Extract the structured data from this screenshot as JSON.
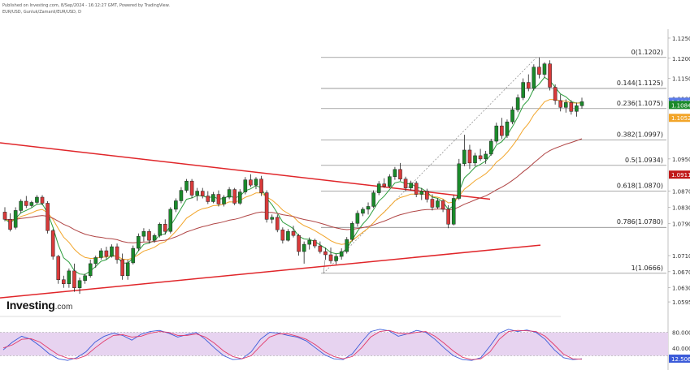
{
  "header": {
    "line1": "Published on Investing.com, 8/Sep/2024 - 16:12:27 GMT, Powered by TradingView.",
    "line2": "EUR/USD, Gunluk/Zamanli/EUR/USD, D"
  },
  "watermark": {
    "brand": "Investing",
    "domain": ".com"
  },
  "colors": {
    "bull": "#1a8a2a",
    "bear": "#d93a3a",
    "ema_fast": "#2e9e3e",
    "ema_mid": "#f2a52a",
    "ema_slow": "#b04545",
    "trend": "#e0262a",
    "stoch_k": "#3b5bd9",
    "stoch_d": "#e23a6a",
    "stoch_band": "#e7d3f0"
  },
  "chart_data": [
    {
      "type": "candlestick",
      "symbol": "EUR/USD",
      "y_ticks": [
        "1.1250",
        "1.1200",
        "1.1150",
        "1.1100",
        "1.0950",
        "1.0870",
        "1.0830",
        "1.0790",
        "1.0710",
        "1.0670",
        "1.0630",
        "1.0595"
      ],
      "ylim": [
        1.0575,
        1.126
      ],
      "price_labels": [
        {
          "text": "1.1092",
          "value": 1.1092,
          "color": "#5b7be8"
        },
        {
          "text": "1.1084",
          "value": 1.1084,
          "color": "#1a8a2a"
        },
        {
          "text": "1.1052",
          "value": 1.1052,
          "color": "#f2a52a"
        },
        {
          "text": "1.0911",
          "value": 1.0911,
          "color": "#c01818"
        }
      ],
      "fibonacci": [
        {
          "label": "0(1.1202)",
          "value": 1.1202
        },
        {
          "label": "0.144(1.1125)",
          "value": 1.1125
        },
        {
          "label": "0.236(1.1075)",
          "value": 1.1075
        },
        {
          "label": "0.382(1.0997)",
          "value": 1.0997
        },
        {
          "label": "0.5(1.0934)",
          "value": 1.0934
        },
        {
          "label": "0.618(1.0870)",
          "value": 1.087
        },
        {
          "label": "0.786(1.0780)",
          "value": 1.078
        },
        {
          "label": "1(1.0666)",
          "value": 1.0666
        }
      ],
      "candles": [
        [
          1.0818,
          1.083,
          1.0795,
          1.08
        ],
        [
          1.08,
          1.0815,
          1.077,
          1.0775
        ],
        [
          1.078,
          1.083,
          1.0775,
          1.0822
        ],
        [
          1.0822,
          1.085,
          1.0815,
          1.0845
        ],
        [
          1.0845,
          1.0858,
          1.0828,
          1.0834
        ],
        [
          1.0834,
          1.0846,
          1.083,
          1.0842
        ],
        [
          1.0842,
          1.086,
          1.0838,
          1.0855
        ],
        [
          1.0855,
          1.086,
          1.0835,
          1.084
        ],
        [
          1.084,
          1.0845,
          1.0765,
          1.0772
        ],
        [
          1.0772,
          1.0776,
          1.07,
          1.0708
        ],
        [
          1.0708,
          1.0712,
          1.064,
          1.065
        ],
        [
          1.065,
          1.066,
          1.063,
          1.064
        ],
        [
          1.064,
          1.0678,
          1.063,
          1.0672
        ],
        [
          1.0672,
          1.069,
          1.062,
          1.063
        ],
        [
          1.063,
          1.0655,
          1.0615,
          1.0648
        ],
        [
          1.0648,
          1.0665,
          1.064,
          1.066
        ],
        [
          1.066,
          1.07,
          1.0655,
          1.069
        ],
        [
          1.069,
          1.071,
          1.068,
          1.0705
        ],
        [
          1.0705,
          1.0728,
          1.07,
          1.0722
        ],
        [
          1.0722,
          1.0732,
          1.07,
          1.0708
        ],
        [
          1.0708,
          1.0738,
          1.0705,
          1.0732
        ],
        [
          1.0732,
          1.074,
          1.069,
          1.07
        ],
        [
          1.07,
          1.0715,
          1.065,
          1.066
        ],
        [
          1.066,
          1.07,
          1.065,
          1.0692
        ],
        [
          1.0692,
          1.0735,
          1.0688,
          1.0728
        ],
        [
          1.0728,
          1.0765,
          1.0722,
          1.0758
        ],
        [
          1.0758,
          1.0778,
          1.0745,
          1.077
        ],
        [
          1.077,
          1.0776,
          1.074,
          1.0748
        ],
        [
          1.0748,
          1.0765,
          1.0742,
          1.076
        ],
        [
          1.076,
          1.0792,
          1.0755,
          1.0788
        ],
        [
          1.0788,
          1.08,
          1.0762,
          1.077
        ],
        [
          1.077,
          1.083,
          1.0765,
          1.0825
        ],
        [
          1.0825,
          1.0852,
          1.0818,
          1.0846
        ],
        [
          1.0846,
          1.088,
          1.084,
          1.0872
        ],
        [
          1.0872,
          1.09,
          1.0866,
          1.0895
        ],
        [
          1.0895,
          1.09,
          1.0852,
          1.086
        ],
        [
          1.086,
          1.0878,
          1.0846,
          1.087
        ],
        [
          1.087,
          1.0878,
          1.0852,
          1.0858
        ],
        [
          1.0858,
          1.087,
          1.0838,
          1.0844
        ],
        [
          1.0844,
          1.0868,
          1.084,
          1.0862
        ],
        [
          1.0862,
          1.0872,
          1.0832,
          1.0838
        ],
        [
          1.0838,
          1.086,
          1.0832,
          1.0855
        ],
        [
          1.0855,
          1.088,
          1.085,
          1.0874
        ],
        [
          1.0874,
          1.0878,
          1.0835,
          1.084
        ],
        [
          1.084,
          1.0875,
          1.0836,
          1.0868
        ],
        [
          1.0868,
          1.0905,
          1.0862,
          1.0898
        ],
        [
          1.0898,
          1.0912,
          1.088,
          1.0885
        ],
        [
          1.0885,
          1.0905,
          1.0875,
          1.09
        ],
        [
          1.09,
          1.0908,
          1.0858,
          1.0866
        ],
        [
          1.0866,
          1.0872,
          1.0792,
          1.08
        ],
        [
          1.08,
          1.0812,
          1.079,
          1.0805
        ],
        [
          1.0805,
          1.0812,
          1.0768,
          1.0774
        ],
        [
          1.0774,
          1.078,
          1.074,
          1.0748
        ],
        [
          1.0748,
          1.0776,
          1.0745,
          1.077
        ],
        [
          1.077,
          1.0784,
          1.0755,
          1.076
        ],
        [
          1.076,
          1.0764,
          1.071,
          1.072
        ],
        [
          1.072,
          1.0745,
          1.069,
          1.0738
        ],
        [
          1.0738,
          1.0755,
          1.0725,
          1.0748
        ],
        [
          1.0748,
          1.0752,
          1.0728,
          1.0734
        ],
        [
          1.0734,
          1.0745,
          1.0715,
          1.072
        ],
        [
          1.072,
          1.073,
          1.07,
          1.0712
        ],
        [
          1.0712,
          1.073,
          1.069,
          1.0697
        ],
        [
          1.0697,
          1.0715,
          1.0688,
          1.0708
        ],
        [
          1.0708,
          1.0728,
          1.07,
          1.072
        ],
        [
          1.072,
          1.0756,
          1.0715,
          1.075
        ],
        [
          1.075,
          1.0795,
          1.0745,
          1.079
        ],
        [
          1.079,
          1.0822,
          1.0782,
          1.0815
        ],
        [
          1.0815,
          1.083,
          1.0808,
          1.0825
        ],
        [
          1.0825,
          1.0842,
          1.0812,
          1.0832
        ],
        [
          1.0832,
          1.0872,
          1.0828,
          1.0866
        ],
        [
          1.0866,
          1.0895,
          1.086,
          1.0888
        ],
        [
          1.0888,
          1.0902,
          1.0878,
          1.0882
        ],
        [
          1.0882,
          1.0912,
          1.0878,
          1.0906
        ],
        [
          1.0906,
          1.093,
          1.0898,
          1.0924
        ],
        [
          1.0924,
          1.094,
          1.0895,
          1.09
        ],
        [
          1.09,
          1.0906,
          1.087,
          1.0878
        ],
        [
          1.0878,
          1.0896,
          1.0872,
          1.089
        ],
        [
          1.089,
          1.0895,
          1.0855,
          1.0862
        ],
        [
          1.0862,
          1.0878,
          1.0848,
          1.087
        ],
        [
          1.087,
          1.0876,
          1.0842,
          1.085
        ],
        [
          1.085,
          1.0862,
          1.0822,
          1.083
        ],
        [
          1.083,
          1.0852,
          1.0826,
          1.0846
        ],
        [
          1.0846,
          1.085,
          1.0818,
          1.0825
        ],
        [
          1.0825,
          1.0835,
          1.0778,
          1.0788
        ],
        [
          1.0788,
          1.086,
          1.0785,
          1.0852
        ],
        [
          1.0852,
          1.095,
          1.0848,
          1.0938
        ],
        [
          1.0938,
          1.101,
          1.0932,
          1.0972
        ],
        [
          1.0972,
          1.0985,
          1.0925,
          1.094
        ],
        [
          1.094,
          1.0965,
          1.0932,
          1.0958
        ],
        [
          1.0958,
          1.0975,
          1.0945,
          1.095
        ],
        [
          1.095,
          1.097,
          1.0938,
          1.0962
        ],
        [
          1.0962,
          1.1,
          1.0958,
          1.0994
        ],
        [
          1.0994,
          1.104,
          1.0988,
          1.1032
        ],
        [
          1.1032,
          1.1052,
          1.1,
          1.1008
        ],
        [
          1.1008,
          1.1048,
          1.1002,
          1.1042
        ],
        [
          1.1042,
          1.108,
          1.1036,
          1.1072
        ],
        [
          1.1072,
          1.111,
          1.1066,
          1.1102
        ],
        [
          1.1102,
          1.115,
          1.1096,
          1.114
        ],
        [
          1.114,
          1.116,
          1.1118,
          1.1125
        ],
        [
          1.1125,
          1.1185,
          1.112,
          1.1178
        ],
        [
          1.1178,
          1.1202,
          1.115,
          1.116
        ],
        [
          1.116,
          1.119,
          1.1152,
          1.1186
        ],
        [
          1.1186,
          1.1195,
          1.112,
          1.1128
        ],
        [
          1.1128,
          1.1135,
          1.1085,
          1.1095
        ],
        [
          1.1095,
          1.111,
          1.1068,
          1.1078
        ],
        [
          1.1078,
          1.1098,
          1.1065,
          1.109
        ],
        [
          1.109,
          1.1096,
          1.106,
          1.1068
        ],
        [
          1.1068,
          1.109,
          1.1055,
          1.1082
        ],
        [
          1.1082,
          1.1102,
          1.1075,
          1.1092
        ]
      ],
      "ema_fast_approx": true
    },
    {
      "type": "line",
      "name": "stochastic",
      "y_ticks": [
        "80.000",
        "40.000"
      ],
      "ylim": [
        0,
        100
      ],
      "band": [
        20,
        80
      ],
      "last_value_label": "12.506",
      "series": [
        {
          "name": "%K",
          "values": [
            35,
            55,
            70,
            62,
            45,
            25,
            12,
            8,
            15,
            30,
            55,
            70,
            78,
            72,
            60,
            75,
            82,
            85,
            78,
            68,
            74,
            80,
            62,
            40,
            20,
            10,
            12,
            30,
            62,
            80,
            78,
            72,
            68,
            58,
            40,
            22,
            12,
            10,
            25,
            55,
            82,
            88,
            84,
            70,
            76,
            85,
            80,
            62,
            40,
            20,
            10,
            8,
            15,
            45,
            78,
            88,
            82,
            86,
            80,
            62,
            35,
            15,
            10,
            12
          ]
        },
        {
          "name": "%D",
          "values": [
            40,
            48,
            62,
            64,
            55,
            38,
            22,
            14,
            12,
            20,
            40,
            58,
            72,
            74,
            68,
            70,
            78,
            82,
            80,
            72,
            72,
            76,
            68,
            52,
            32,
            18,
            12,
            20,
            45,
            68,
            76,
            76,
            70,
            62,
            48,
            30,
            18,
            12,
            18,
            40,
            68,
            82,
            85,
            78,
            76,
            80,
            82,
            70,
            52,
            32,
            16,
            10,
            12,
            30,
            62,
            82,
            85,
            84,
            82,
            70,
            48,
            24,
            12,
            11
          ]
        }
      ]
    }
  ]
}
